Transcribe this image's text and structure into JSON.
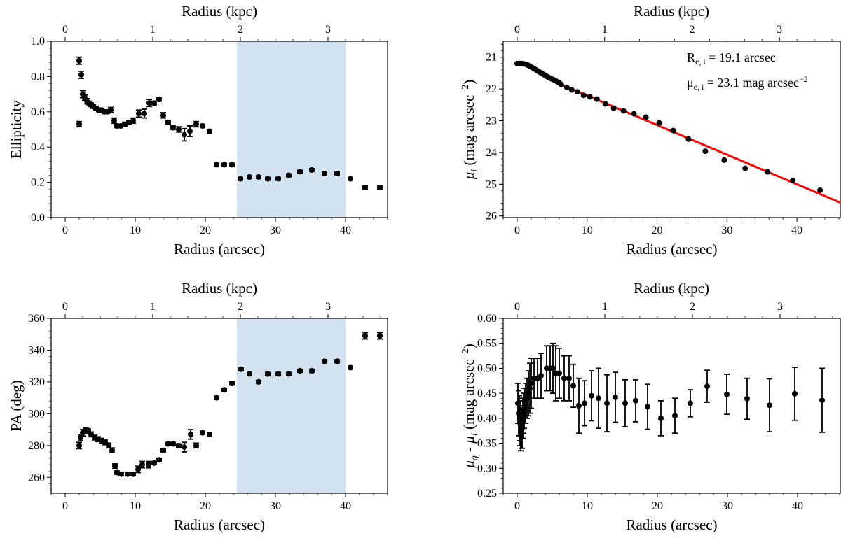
{
  "chart_data": [
    {
      "id": "ellipticity",
      "type": "scatter",
      "xlabel": "Radius (arcsec)",
      "top_xlabel": "Radius (kpc)",
      "ylabel": "Ellipticity",
      "xlim": [
        -2,
        46
      ],
      "ylim": [
        0,
        1
      ],
      "xticks": [
        0,
        10,
        20,
        30,
        40
      ],
      "yticks": [
        0.0,
        0.2,
        0.4,
        0.6,
        0.8,
        1.0
      ],
      "ytick_labels": [
        "0.0",
        "0.2",
        "0.4",
        "0.6",
        "0.8",
        "1.0"
      ],
      "top_xticks_kpc": [
        0,
        1,
        2,
        3
      ],
      "arcsec_per_kpc": 12.5,
      "shaded_region": [
        24.5,
        40
      ],
      "shade_color": "#d2e3ef",
      "marker_color": "#000000",
      "x": [
        2.0,
        2.0,
        2.3,
        2.5,
        2.8,
        3.1,
        3.4,
        3.7,
        4.0,
        4.4,
        4.8,
        5.2,
        5.6,
        6.0,
        6.5,
        7.0,
        7.4,
        7.9,
        8.5,
        9.1,
        9.7,
        10.5,
        11.3,
        12.0,
        12.7,
        13.4,
        14.0,
        14.7,
        15.4,
        16.2,
        17.0,
        17.8,
        18.7,
        19.6,
        20.6,
        21.6,
        22.7,
        23.8,
        25.0,
        26.3,
        27.6,
        28.9,
        30.4,
        31.9,
        33.5,
        35.2,
        37.0,
        38.8,
        40.7,
        42.8,
        44.9
      ],
      "y": [
        0.53,
        0.89,
        0.81,
        0.7,
        0.68,
        0.66,
        0.65,
        0.64,
        0.63,
        0.62,
        0.61,
        0.61,
        0.6,
        0.6,
        0.61,
        0.55,
        0.52,
        0.52,
        0.53,
        0.54,
        0.55,
        0.59,
        0.59,
        0.65,
        0.65,
        0.67,
        0.58,
        0.54,
        0.51,
        0.5,
        0.47,
        0.49,
        0.53,
        0.52,
        0.49,
        0.3,
        0.3,
        0.3,
        0.22,
        0.23,
        0.23,
        0.22,
        0.22,
        0.24,
        0.26,
        0.27,
        0.25,
        0.25,
        0.22,
        0.17,
        0.17
      ],
      "yerr": [
        0.015,
        0.02,
        0.02,
        0.02,
        0.015,
        0.015,
        0.01,
        0.01,
        0.01,
        0.01,
        0.01,
        0.01,
        0.01,
        0.01,
        0.015,
        0.015,
        0.01,
        0.01,
        0.01,
        0.01,
        0.015,
        0.02,
        0.025,
        0.02,
        0.01,
        0.01,
        0.015,
        0.01,
        0.01,
        0.015,
        0.035,
        0.03,
        0.015,
        0.01,
        0.01,
        0.008,
        0.008,
        0.008,
        0.008,
        0.008,
        0.008,
        0.008,
        0.008,
        0.008,
        0.008,
        0.008,
        0.008,
        0.008,
        0.008,
        0.01,
        0.01
      ]
    },
    {
      "id": "surface-brightness",
      "type": "scatter",
      "xlabel": "Radius (arcsec)",
      "top_xlabel": "Radius (kpc)",
      "ylabel": "μ_i (mag arcsec^−2)",
      "ylabel_parts": {
        "symbol": "μ",
        "sub": "i",
        "rest": " (mag arcsec",
        "sup": "−2",
        "close": ")"
      },
      "xlim": [
        -2,
        46.2
      ],
      "ylim": [
        26.05,
        20.5
      ],
      "y_inverted": true,
      "xticks": [
        0,
        10,
        20,
        30,
        40
      ],
      "yticks": [
        21,
        22,
        23,
        24,
        25,
        26
      ],
      "ytick_labels": [
        "21",
        "22",
        "23",
        "24",
        "25",
        "26"
      ],
      "top_xticks_kpc": [
        0,
        1,
        2,
        3
      ],
      "arcsec_per_kpc": 12.5,
      "marker_color": "#000000",
      "fit_color": "#ff0000",
      "fit_line": {
        "x": [
          6.3,
          46.2
        ],
        "y": [
          21.86,
          25.58
        ]
      },
      "annotations": [
        {
          "symbol": "R",
          "sub": "e, i",
          "text": " = 19.1 arcsec",
          "sup": ""
        },
        {
          "symbol": "μ",
          "sub": "e, i",
          "text": " = 23.1 mag arcsec",
          "sup": "−2"
        }
      ],
      "x": [
        0,
        0.3,
        0.6,
        0.9,
        1.2,
        1.5,
        1.8,
        2.1,
        2.4,
        2.7,
        3.0,
        3.3,
        3.6,
        3.9,
        4.2,
        4.5,
        4.8,
        5.1,
        5.4,
        5.7,
        6.0,
        6.3,
        7.1,
        7.8,
        8.6,
        9.5,
        10.4,
        11.4,
        12.6,
        13.8,
        15.2,
        16.7,
        18.4,
        20.3,
        22.3,
        24.5,
        26.9,
        29.6,
        32.6,
        35.8,
        39.4,
        43.3
      ],
      "y": [
        21.2,
        21.2,
        21.2,
        21.21,
        21.22,
        21.25,
        21.28,
        21.32,
        21.36,
        21.4,
        21.44,
        21.48,
        21.52,
        21.56,
        21.6,
        21.64,
        21.67,
        21.7,
        21.73,
        21.77,
        21.8,
        21.86,
        21.95,
        22.03,
        22.09,
        22.2,
        22.25,
        22.32,
        22.47,
        22.61,
        22.69,
        22.78,
        22.89,
        23.07,
        23.31,
        23.58,
        23.96,
        24.24,
        24.5,
        24.61,
        24.88,
        25.19
      ]
    },
    {
      "id": "position-angle",
      "type": "scatter",
      "xlabel": "Radius (arcsec)",
      "top_xlabel": "Radius (kpc)",
      "ylabel": "PA (deg)",
      "xlim": [
        -2,
        46
      ],
      "ylim": [
        250,
        360
      ],
      "xticks": [
        0,
        10,
        20,
        30,
        40
      ],
      "yticks": [
        260,
        280,
        300,
        320,
        340,
        360
      ],
      "ytick_labels": [
        "260",
        "280",
        "300",
        "320",
        "340",
        "360"
      ],
      "top_xticks_kpc": [
        0,
        1,
        2,
        3
      ],
      "arcsec_per_kpc": 12.5,
      "shaded_region": [
        24.5,
        40
      ],
      "shade_color": "#d2e3ef",
      "marker_color": "#000000",
      "x": [
        2.0,
        2.2,
        2.5,
        3.0,
        3.3,
        3.7,
        4.2,
        4.7,
        5.2,
        5.7,
        6.2,
        6.7,
        7.1,
        7.4,
        8.0,
        8.9,
        9.7,
        10.4,
        11.0,
        11.9,
        12.7,
        13.4,
        14.0,
        14.7,
        15.4,
        16.2,
        17.0,
        17.9,
        18.7,
        19.6,
        20.6,
        21.6,
        22.7,
        23.8,
        25.1,
        26.3,
        27.6,
        28.9,
        30.4,
        31.9,
        33.5,
        35.2,
        37.0,
        38.8,
        40.7,
        42.8,
        44.9
      ],
      "y": [
        280,
        285,
        288,
        289.5,
        289,
        287,
        285,
        284,
        283,
        282,
        280,
        277,
        267,
        263,
        262,
        262,
        262,
        265,
        268,
        268,
        269,
        271,
        277,
        281,
        281,
        280,
        279,
        287,
        280,
        288,
        287,
        310,
        315,
        319,
        328,
        325,
        320,
        325,
        325,
        325,
        327,
        327,
        333,
        333,
        329,
        349,
        349
      ],
      "yerr": [
        2,
        2,
        2,
        1.5,
        1.5,
        1.5,
        1.5,
        1.5,
        1.5,
        1.5,
        1.5,
        1.5,
        1.5,
        1,
        1,
        1,
        1,
        2,
        2,
        2,
        1,
        1,
        1,
        1,
        1,
        1,
        3,
        3,
        1.5,
        1,
        1,
        1,
        1,
        1,
        1,
        1,
        1,
        1,
        1,
        1,
        1,
        1,
        1,
        1,
        1,
        2,
        2
      ]
    },
    {
      "id": "color-profile",
      "type": "scatter",
      "xlabel": "Radius (arcsec)",
      "top_xlabel": "Radius (kpc)",
      "ylabel": "μ_g - μ_i (mag arcsec^−2)",
      "ylabel_parts": {
        "symbol": "μ",
        "sub": "g",
        "mid": " - ",
        "symbol2": "μ",
        "sub2": "i",
        "rest": " (mag arcsec",
        "sup": "−2",
        "close": ")"
      },
      "xlim": [
        -2,
        46.1
      ],
      "ylim": [
        0.25,
        0.6
      ],
      "xticks": [
        0,
        10,
        20,
        30,
        40
      ],
      "yticks": [
        0.25,
        0.3,
        0.35,
        0.4,
        0.45,
        0.5,
        0.55,
        0.6
      ],
      "ytick_labels": [
        "0.25",
        "0.30",
        "0.35",
        "0.40",
        "0.45",
        "0.50",
        "0.55",
        "0.60"
      ],
      "top_xticks_kpc": [
        0,
        1,
        2,
        3
      ],
      "arcsec_per_kpc": 12.5,
      "marker_color": "#000000",
      "x": [
        0.1,
        0.2,
        0.3,
        0.4,
        0.5,
        0.6,
        0.7,
        0.8,
        0.9,
        1.0,
        1.2,
        1.4,
        1.6,
        1.8,
        2.0,
        2.4,
        2.9,
        3.4,
        4.2,
        4.7,
        5.1,
        5.5,
        6.0,
        6.7,
        7.4,
        8.0,
        8.8,
        9.6,
        10.6,
        11.6,
        12.8,
        14.0,
        15.4,
        16.9,
        18.6,
        20.5,
        22.5,
        24.7,
        27.1,
        29.9,
        32.8,
        36.0,
        39.6,
        43.5
      ],
      "y": [
        0.43,
        0.41,
        0.4,
        0.39,
        0.38,
        0.38,
        0.38,
        0.4,
        0.41,
        0.42,
        0.43,
        0.44,
        0.45,
        0.46,
        0.47,
        0.48,
        0.48,
        0.485,
        0.5,
        0.5,
        0.5,
        0.49,
        0.49,
        0.48,
        0.48,
        0.465,
        0.425,
        0.43,
        0.445,
        0.44,
        0.43,
        0.442,
        0.43,
        0.435,
        0.423,
        0.4,
        0.405,
        0.43,
        0.464,
        0.448,
        0.439,
        0.426,
        0.449,
        0.436
      ],
      "yerr": [
        0.04,
        0.045,
        0.045,
        0.045,
        0.045,
        0.04,
        0.04,
        0.04,
        0.04,
        0.04,
        0.04,
        0.04,
        0.045,
        0.05,
        0.05,
        0.04,
        0.04,
        0.045,
        0.045,
        0.045,
        0.05,
        0.055,
        0.05,
        0.045,
        0.045,
        0.043,
        0.055,
        0.045,
        0.05,
        0.06,
        0.057,
        0.05,
        0.047,
        0.042,
        0.045,
        0.035,
        0.035,
        0.027,
        0.032,
        0.04,
        0.041,
        0.053,
        0.053,
        0.064
      ]
    }
  ]
}
